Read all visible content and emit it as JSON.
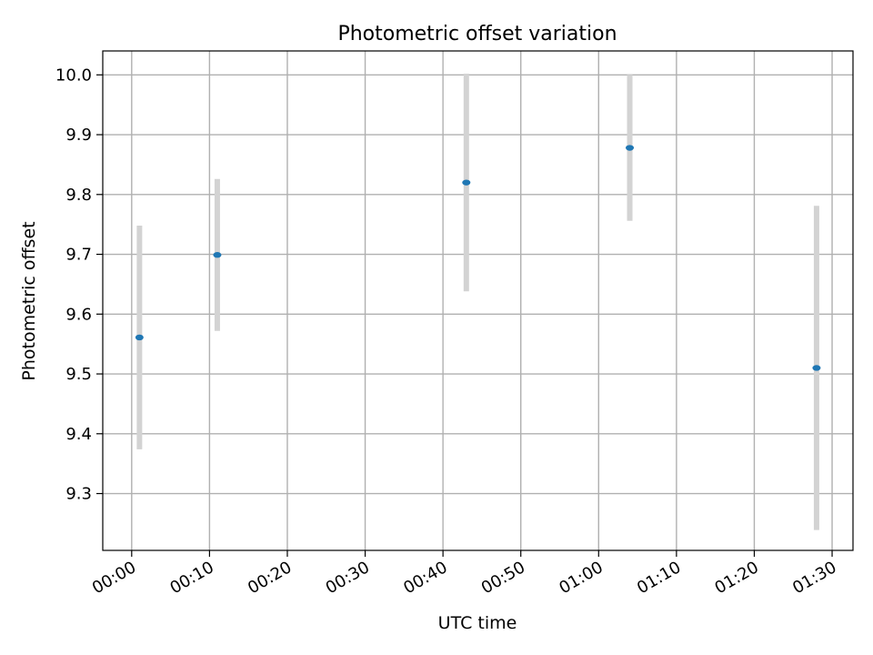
{
  "chart_data": {
    "type": "scatter",
    "title": "Photometric offset variation",
    "xlabel": "UTC time",
    "ylabel": "Photometric offset",
    "x_ticks": [
      "00:00",
      "00:10",
      "00:20",
      "00:30",
      "00:40",
      "00:50",
      "01:00",
      "01:10",
      "01:20",
      "01:30"
    ],
    "y_ticks": [
      "9.3",
      "9.4",
      "9.5",
      "9.6",
      "9.7",
      "9.8",
      "9.9",
      "10.0"
    ],
    "xlim": [
      "-00:03:43",
      "01:32:41"
    ],
    "ylim": [
      9.205,
      10.04
    ],
    "grid": true,
    "colors": {
      "marker": "#1f77b4",
      "errorbar": "#d3d3d3",
      "grid": "#b0b0b0"
    },
    "series": [
      {
        "points": [
          {
            "x": "00:01",
            "y": 9.561,
            "yerr": 0.187
          },
          {
            "x": "00:11",
            "y": 9.699,
            "yerr": 0.127
          },
          {
            "x": "00:43",
            "y": 9.82,
            "yerr": 0.182
          },
          {
            "x": "01:04",
            "y": 9.878,
            "yerr": 0.122
          },
          {
            "x": "01:28",
            "y": 9.51,
            "yerr": 0.271
          }
        ]
      }
    ]
  }
}
